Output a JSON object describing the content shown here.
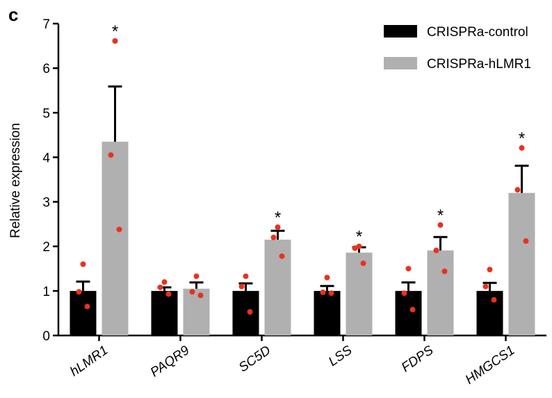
{
  "panel_label": "c",
  "chart_data": {
    "type": "bar",
    "ylabel": "Relative expression",
    "ylim": [
      0,
      7
    ],
    "yticks": [
      0,
      1,
      2,
      3,
      4,
      5,
      6,
      7
    ],
    "categories": [
      "hLMR1",
      "PAQR9",
      "SC5D",
      "LSS",
      "FDPS",
      "HMGCS1"
    ],
    "legend_position": "top-right",
    "grid": false,
    "series": [
      {
        "name": "CRISPRa-control",
        "color": "#000000",
        "values": [
          1.0,
          1.0,
          1.0,
          1.0,
          1.0,
          1.0
        ],
        "errors": [
          0.21,
          0.08,
          0.17,
          0.11,
          0.19,
          0.18
        ],
        "points": [
          [
            1.6,
            0.98,
            0.65
          ],
          [
            1.2,
            1.08,
            0.93
          ],
          [
            1.33,
            1.1,
            0.53
          ],
          [
            1.3,
            0.97,
            0.95
          ],
          [
            1.5,
            0.95,
            0.58
          ],
          [
            1.48,
            1.1,
            0.8
          ]
        ]
      },
      {
        "name": "CRISPRa-hLMR1",
        "color": "#b0b0b0",
        "values": [
          4.35,
          1.05,
          2.15,
          1.86,
          1.91,
          3.2
        ],
        "errors": [
          1.24,
          0.14,
          0.2,
          0.12,
          0.3,
          0.61
        ],
        "points": [
          [
            6.61,
            4.05,
            2.38
          ],
          [
            1.33,
            0.98,
            0.9
          ],
          [
            2.43,
            2.2,
            1.78
          ],
          [
            2.0,
            1.96,
            1.62
          ],
          [
            2.48,
            1.91,
            1.44
          ],
          [
            4.21,
            3.27,
            2.12
          ]
        ]
      }
    ],
    "significance": [
      "*",
      "",
      "*",
      "*",
      "*",
      "*"
    ],
    "point_color": "#e8321e"
  }
}
